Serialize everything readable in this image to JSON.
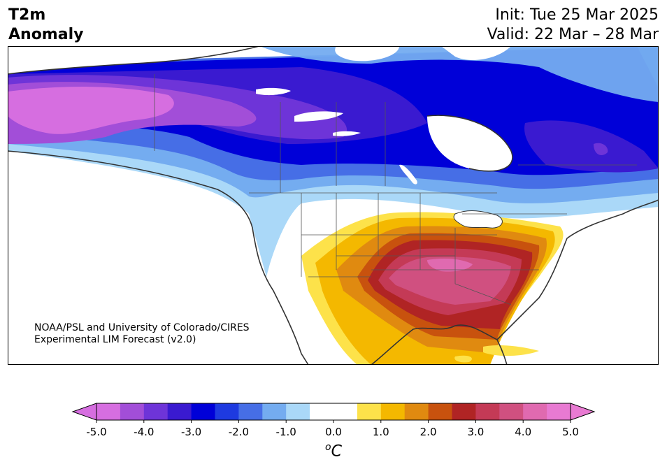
{
  "title": {
    "left_line1": "T2m",
    "left_line2": "Anomaly",
    "init": "Init: Tue 25 Mar 2025",
    "valid": "Valid: 22 Mar – 28 Mar"
  },
  "credit": {
    "line1": "NOAA/PSL and University of Colorado/CIRES",
    "line2": "Experimental LIM Forecast (v2.0)"
  },
  "colorbar": {
    "ticks": [
      "-5.0",
      "-4.0",
      "-3.0",
      "-2.0",
      "-1.0",
      "0.0",
      "1.0",
      "2.0",
      "3.0",
      "4.0",
      "5.0"
    ],
    "unit_base": "o",
    "unit_letter": "C",
    "colors": [
      "#d66ee0",
      "#a24ed8",
      "#6e34d8",
      "#3a1ad0",
      "#0000d8",
      "#1e3ae0",
      "#466ee6",
      "#74acf0",
      "#aad8f8",
      "#ffffff",
      "#ffffff",
      "#fde24a",
      "#f4b800",
      "#e08a10",
      "#c8520e",
      "#b02424",
      "#c43a56",
      "#d05080",
      "#e06ab0",
      "#e87ad2"
    ],
    "min_arrow": "#d66ee0",
    "max_arrow": "#e87ad2"
  }
}
